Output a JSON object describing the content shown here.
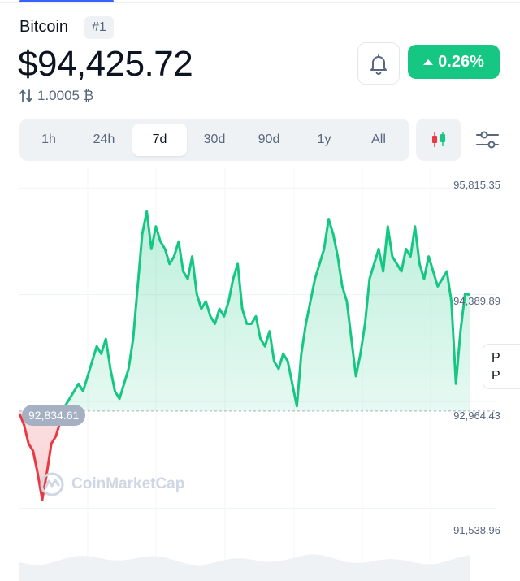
{
  "coin": {
    "name": "Bitcoin",
    "rank": "#1"
  },
  "price": {
    "value": "$94,425.72",
    "btc_value": "1.0005 ₿"
  },
  "change": {
    "text": "0.26%",
    "direction": "up",
    "color": "#16c784"
  },
  "icons": {
    "alert": "bell-icon",
    "swap": "swap-vertical-icon",
    "chart_type": "candlestick-icon",
    "settings": "sliders-icon",
    "watermark": "coinmarketcap-logo-icon"
  },
  "timeframes": [
    "1h",
    "24h",
    "7d",
    "30d",
    "90d",
    "1y",
    "All"
  ],
  "selected_timeframe": "7d",
  "watermark": "CoinMarketCap",
  "edge_card": {
    "line1": "P",
    "line2": "P"
  },
  "chart_data": {
    "type": "line",
    "title": "",
    "y_ticks": [
      "95,815.35",
      "94,389.89",
      "92,964.43",
      "91,538.96"
    ],
    "ylim": [
      91000,
      96100
    ],
    "reference_value": 92834.61,
    "reference_label": "92,834.61",
    "above_color": "#16c784",
    "below_color": "#ea3943",
    "values": [
      92800,
      92650,
      92400,
      92300,
      92000,
      91650,
      92000,
      92400,
      92500,
      92700,
      92900,
      93000,
      93100,
      93200,
      93100,
      93300,
      93500,
      93700,
      93600,
      93800,
      93400,
      93100,
      93000,
      93200,
      93400,
      93800,
      94500,
      95200,
      95500,
      95000,
      95300,
      95100,
      95000,
      94800,
      94900,
      95100,
      94700,
      94600,
      94900,
      94400,
      94200,
      94300,
      94100,
      94000,
      94200,
      94100,
      94300,
      94600,
      94800,
      94200,
      94000,
      94000,
      94100,
      93800,
      93700,
      93900,
      93500,
      93400,
      93600,
      93500,
      93200,
      92900,
      93600,
      94000,
      94300,
      94600,
      94800,
      95000,
      95400,
      95200,
      94900,
      94500,
      94300,
      93800,
      93300,
      93600,
      94000,
      94600,
      94800,
      95000,
      94700,
      95300,
      94900,
      94800,
      94700,
      95000,
      94900,
      95300,
      94800,
      94600,
      94900,
      94700,
      94500,
      94600,
      94700,
      94300,
      93200,
      93900,
      94400,
      94389
    ]
  }
}
